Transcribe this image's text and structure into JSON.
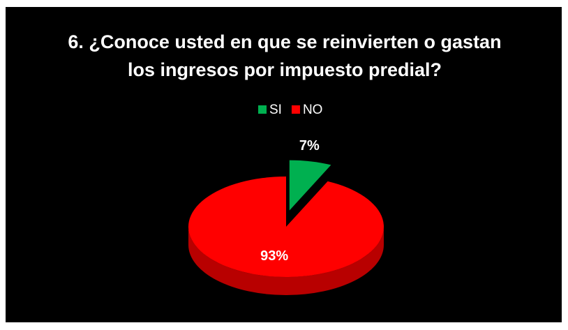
{
  "chart_data": {
    "type": "pie",
    "title": "6. ¿Conoce usted en que se reinvierten o gastan los ingresos por impuesto predial?",
    "categories": [
      "SI",
      "NO"
    ],
    "values": [
      7,
      93
    ],
    "value_labels": [
      "7%",
      "93%"
    ],
    "colors": [
      "#00b050",
      "#ff0000"
    ],
    "legend": "top"
  }
}
